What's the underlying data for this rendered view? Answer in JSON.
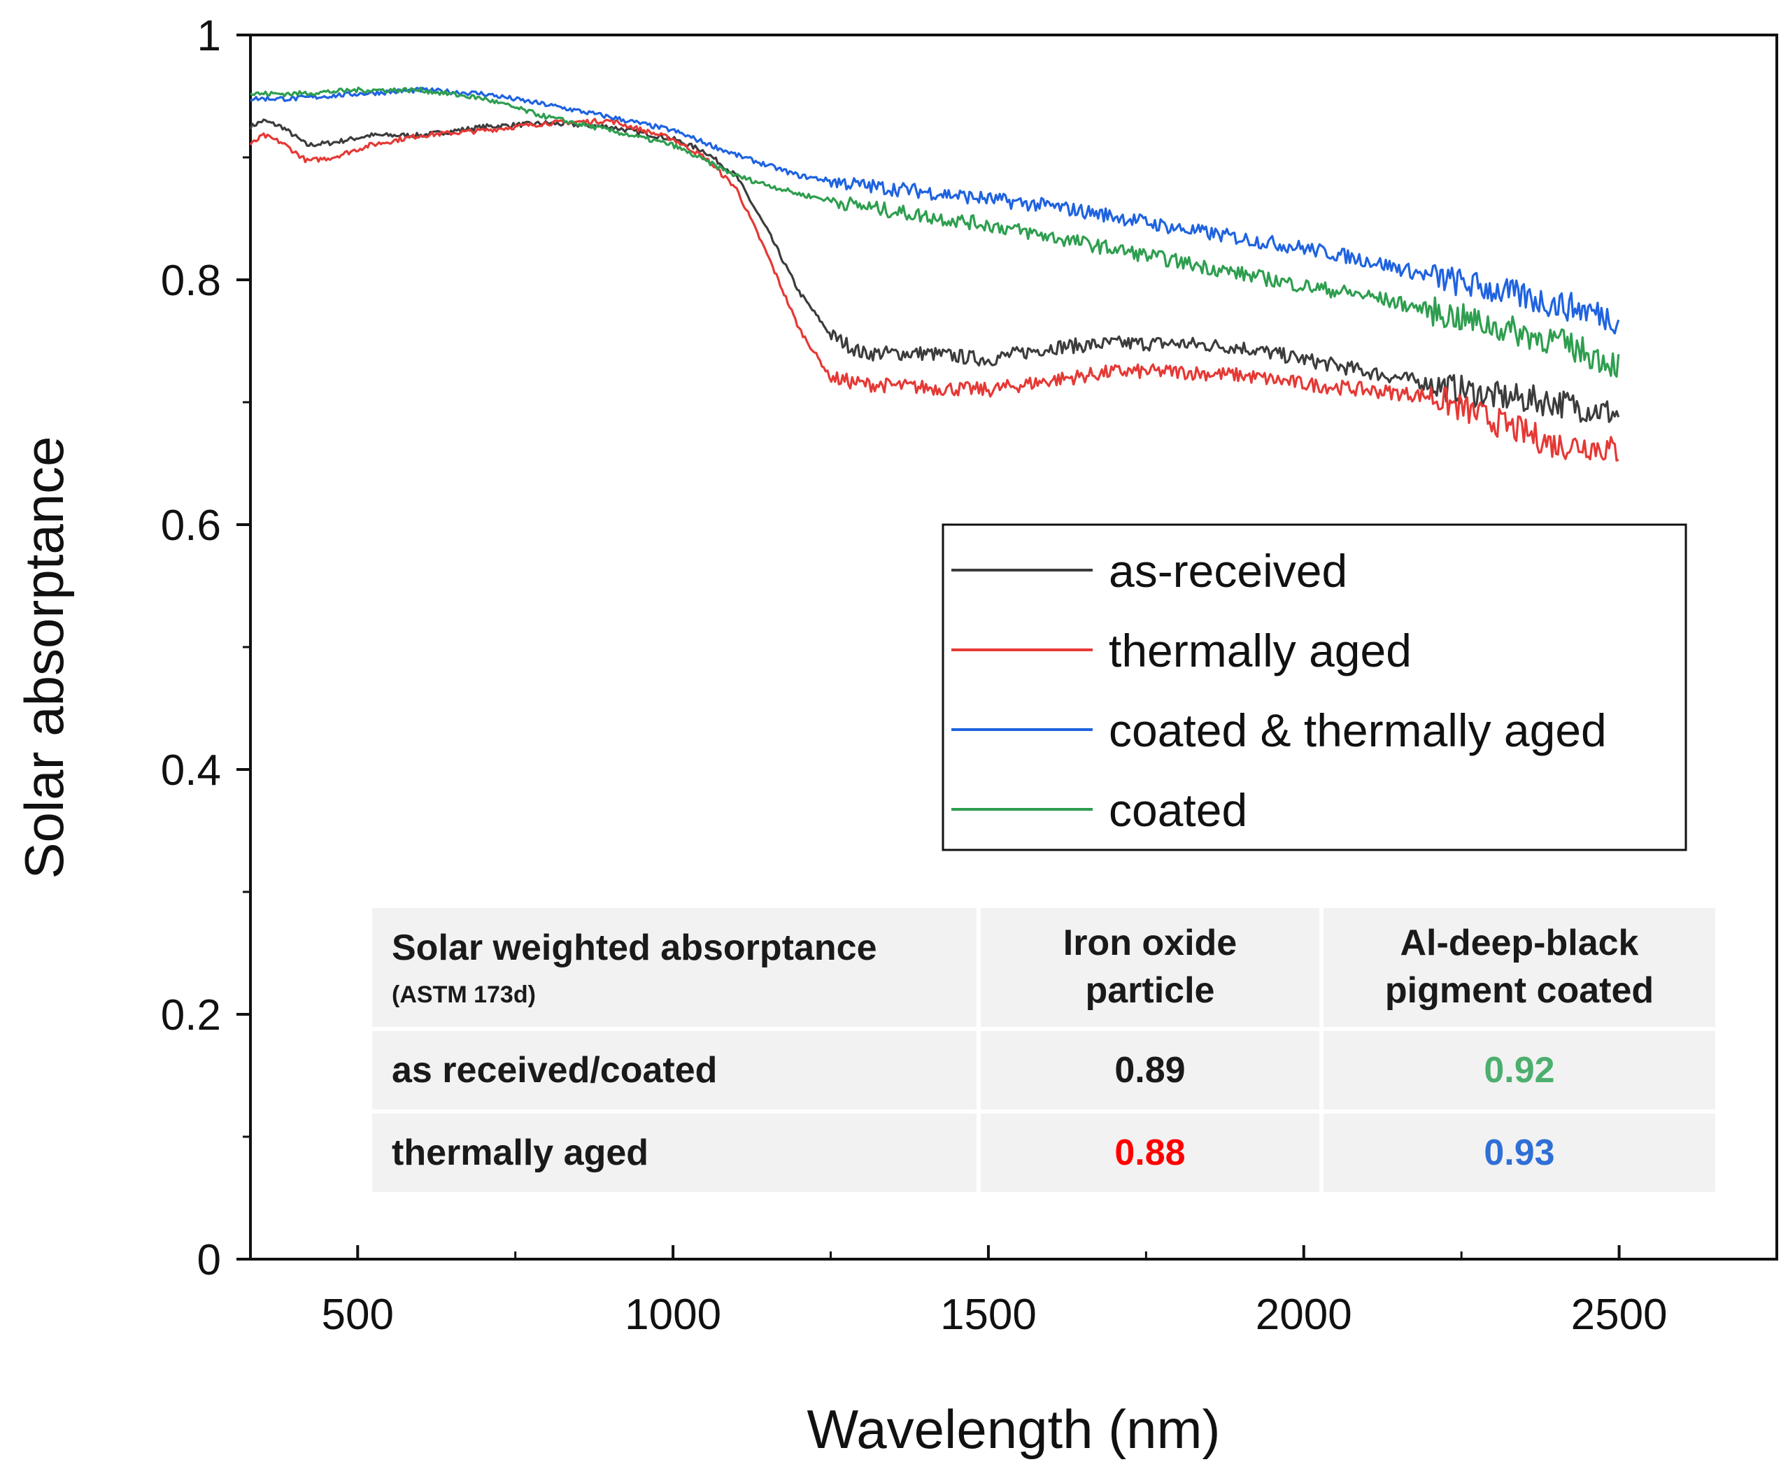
{
  "chart_data": {
    "type": "line",
    "xlabel": "Wavelength (nm)",
    "ylabel": "Solar absorptance",
    "xlim": [
      330,
      2750
    ],
    "ylim": [
      0,
      1
    ],
    "x_ticks": [
      500,
      1000,
      1500,
      2000,
      2500
    ],
    "y_ticks": [
      0,
      0.2,
      0.4,
      0.6,
      0.8,
      1
    ],
    "y_tick_labels": [
      "0",
      "0.2",
      "0.4",
      "0.6",
      "0.8",
      "1"
    ],
    "grid": false,
    "legend_position": "center-right",
    "series": [
      {
        "name": "as-received",
        "color": "#3c3c3c",
        "points": [
          [
            330,
            0.925
          ],
          [
            350,
            0.93
          ],
          [
            380,
            0.925
          ],
          [
            420,
            0.91
          ],
          [
            460,
            0.912
          ],
          [
            520,
            0.918
          ],
          [
            600,
            0.918
          ],
          [
            700,
            0.925
          ],
          [
            800,
            0.928
          ],
          [
            900,
            0.925
          ],
          [
            1000,
            0.915
          ],
          [
            1050,
            0.905
          ],
          [
            1100,
            0.885
          ],
          [
            1150,
            0.84
          ],
          [
            1200,
            0.79
          ],
          [
            1250,
            0.755
          ],
          [
            1300,
            0.74
          ],
          [
            1400,
            0.74
          ],
          [
            1500,
            0.735
          ],
          [
            1600,
            0.745
          ],
          [
            1700,
            0.748
          ],
          [
            1800,
            0.748
          ],
          [
            1900,
            0.745
          ],
          [
            2000,
            0.735
          ],
          [
            2100,
            0.725
          ],
          [
            2200,
            0.715
          ],
          [
            2300,
            0.705
          ],
          [
            2400,
            0.7
          ],
          [
            2450,
            0.695
          ],
          [
            2500,
            0.69
          ]
        ]
      },
      {
        "name": "thermally aged",
        "color": "#e53935",
        "points": [
          [
            330,
            0.91
          ],
          [
            350,
            0.918
          ],
          [
            380,
            0.912
          ],
          [
            420,
            0.897
          ],
          [
            460,
            0.9
          ],
          [
            520,
            0.91
          ],
          [
            600,
            0.918
          ],
          [
            700,
            0.922
          ],
          [
            800,
            0.928
          ],
          [
            900,
            0.93
          ],
          [
            1000,
            0.915
          ],
          [
            1050,
            0.9
          ],
          [
            1100,
            0.875
          ],
          [
            1150,
            0.82
          ],
          [
            1200,
            0.76
          ],
          [
            1250,
            0.72
          ],
          [
            1300,
            0.715
          ],
          [
            1400,
            0.712
          ],
          [
            1500,
            0.71
          ],
          [
            1600,
            0.718
          ],
          [
            1700,
            0.725
          ],
          [
            1800,
            0.725
          ],
          [
            1900,
            0.722
          ],
          [
            2000,
            0.715
          ],
          [
            2100,
            0.71
          ],
          [
            2200,
            0.705
          ],
          [
            2300,
            0.685
          ],
          [
            2400,
            0.665
          ],
          [
            2450,
            0.665
          ],
          [
            2500,
            0.66
          ]
        ]
      },
      {
        "name": "coated & thermally aged",
        "color": "#1f63e0",
        "points": [
          [
            330,
            0.948
          ],
          [
            400,
            0.948
          ],
          [
            500,
            0.952
          ],
          [
            600,
            0.955
          ],
          [
            700,
            0.952
          ],
          [
            800,
            0.943
          ],
          [
            900,
            0.933
          ],
          [
            1000,
            0.922
          ],
          [
            1100,
            0.902
          ],
          [
            1200,
            0.885
          ],
          [
            1300,
            0.877
          ],
          [
            1400,
            0.872
          ],
          [
            1500,
            0.866
          ],
          [
            1600,
            0.86
          ],
          [
            1700,
            0.852
          ],
          [
            1800,
            0.842
          ],
          [
            1900,
            0.834
          ],
          [
            2000,
            0.826
          ],
          [
            2100,
            0.816
          ],
          [
            2200,
            0.803
          ],
          [
            2300,
            0.792
          ],
          [
            2400,
            0.78
          ],
          [
            2450,
            0.775
          ],
          [
            2500,
            0.767
          ]
        ]
      },
      {
        "name": "coated",
        "color": "#2e9e4f",
        "points": [
          [
            330,
            0.952
          ],
          [
            400,
            0.952
          ],
          [
            500,
            0.955
          ],
          [
            600,
            0.955
          ],
          [
            700,
            0.948
          ],
          [
            800,
            0.933
          ],
          [
            900,
            0.922
          ],
          [
            1000,
            0.91
          ],
          [
            1100,
            0.885
          ],
          [
            1200,
            0.87
          ],
          [
            1300,
            0.86
          ],
          [
            1400,
            0.852
          ],
          [
            1500,
            0.845
          ],
          [
            1600,
            0.835
          ],
          [
            1700,
            0.825
          ],
          [
            1800,
            0.815
          ],
          [
            1900,
            0.805
          ],
          [
            2000,
            0.795
          ],
          [
            2100,
            0.787
          ],
          [
            2200,
            0.775
          ],
          [
            2300,
            0.762
          ],
          [
            2400,
            0.75
          ],
          [
            2450,
            0.74
          ],
          [
            2500,
            0.73
          ]
        ]
      }
    ]
  },
  "table": {
    "header": {
      "col0": "Solar weighted absorptance",
      "col0_sub": "(ASTM 173d)",
      "col1": "Iron oxide particle",
      "col2": "Al-deep-black pigment coated"
    },
    "rows": [
      {
        "label": "as received/coated",
        "v1": "0.89",
        "v1_color": "#1a1a1a",
        "v2": "0.92",
        "v2_color": "#4caf6e"
      },
      {
        "label": "thermally aged",
        "v1": "0.88",
        "v1_color": "#ff0000",
        "v2": "0.93",
        "v2_color": "#2f6fd6"
      }
    ]
  }
}
